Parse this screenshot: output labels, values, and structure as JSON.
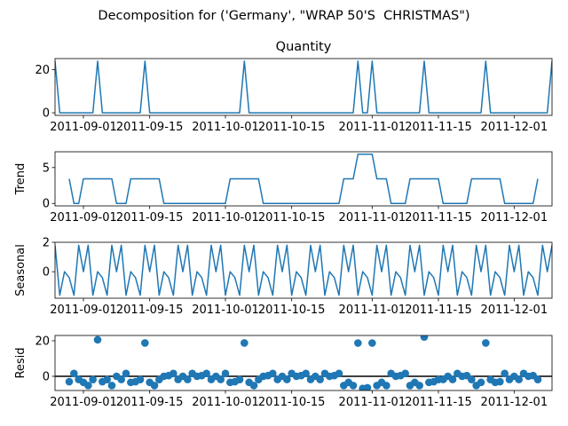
{
  "chart_data": {
    "title": "Decomposition for ('Germany', \"WRAP 50'S  CHRISTMAS\")",
    "x": [
      "2011-08-26",
      "2011-08-27",
      "2011-08-28",
      "2011-08-29",
      "2011-08-30",
      "2011-08-31",
      "2011-09-01",
      "2011-09-02",
      "2011-09-03",
      "2011-09-04",
      "2011-09-05",
      "2011-09-06",
      "2011-09-07",
      "2011-09-08",
      "2011-09-09",
      "2011-09-10",
      "2011-09-11",
      "2011-09-12",
      "2011-09-13",
      "2011-09-14",
      "2011-09-15",
      "2011-09-16",
      "2011-09-17",
      "2011-09-18",
      "2011-09-19",
      "2011-09-20",
      "2011-09-21",
      "2011-09-22",
      "2011-09-23",
      "2011-09-24",
      "2011-09-25",
      "2011-09-26",
      "2011-09-27",
      "2011-09-28",
      "2011-09-29",
      "2011-09-30",
      "2011-10-01",
      "2011-10-02",
      "2011-10-03",
      "2011-10-04",
      "2011-10-05",
      "2011-10-06",
      "2011-10-07",
      "2011-10-08",
      "2011-10-09",
      "2011-10-10",
      "2011-10-11",
      "2011-10-12",
      "2011-10-13",
      "2011-10-14",
      "2011-10-15",
      "2011-10-16",
      "2011-10-17",
      "2011-10-18",
      "2011-10-19",
      "2011-10-20",
      "2011-10-21",
      "2011-10-22",
      "2011-10-23",
      "2011-10-24",
      "2011-10-25",
      "2011-10-26",
      "2011-10-27",
      "2011-10-28",
      "2011-10-29",
      "2011-10-30",
      "2011-10-31",
      "2011-11-01",
      "2011-11-02",
      "2011-11-03",
      "2011-11-04",
      "2011-11-05",
      "2011-11-06",
      "2011-11-07",
      "2011-11-08",
      "2011-11-09",
      "2011-11-10",
      "2011-11-11",
      "2011-11-12",
      "2011-11-13",
      "2011-11-14",
      "2011-11-15",
      "2011-11-16",
      "2011-11-17",
      "2011-11-18",
      "2011-11-19",
      "2011-11-20",
      "2011-11-21",
      "2011-11-22",
      "2011-11-23",
      "2011-11-24",
      "2011-11-25",
      "2011-11-26",
      "2011-11-27",
      "2011-11-28",
      "2011-11-29",
      "2011-11-30",
      "2011-12-01",
      "2011-12-02",
      "2011-12-03",
      "2011-12-04",
      "2011-12-05",
      "2011-12-06",
      "2011-12-07",
      "2011-12-08",
      "2011-12-09"
    ],
    "xlim": [
      "2011-08-26",
      "2011-12-09"
    ],
    "xticks": [
      "2011-09-01",
      "2011-09-15",
      "2011-10-01",
      "2011-10-15",
      "2011-11-01",
      "2011-11-15",
      "2011-12-01"
    ],
    "panels": [
      {
        "type": "line",
        "title": "Quantity",
        "color": "#1f77b4",
        "ylim": [
          -1.2,
          25.2
        ],
        "yticks": [
          0,
          20
        ],
        "values": [
          24,
          0,
          0,
          0,
          0,
          0,
          0,
          0,
          0,
          24,
          0,
          0,
          0,
          0,
          0,
          0,
          0,
          0,
          0,
          24,
          0,
          0,
          0,
          0,
          0,
          0,
          0,
          0,
          0,
          0,
          0,
          0,
          0,
          0,
          0,
          0,
          0,
          0,
          0,
          0,
          24,
          0,
          0,
          0,
          0,
          0,
          0,
          0,
          0,
          0,
          0,
          0,
          0,
          0,
          0,
          0,
          0,
          0,
          0,
          0,
          0,
          0,
          0,
          0,
          24,
          0,
          0,
          24,
          0,
          0,
          0,
          0,
          0,
          0,
          0,
          0,
          0,
          0,
          24,
          0,
          0,
          0,
          0,
          0,
          0,
          0,
          0,
          0,
          0,
          0,
          0,
          24,
          0,
          0,
          0,
          0,
          0,
          0,
          0,
          0,
          0,
          0,
          0,
          0,
          0,
          24
        ]
      },
      {
        "type": "line",
        "ylabel": "Trend",
        "color": "#1f77b4",
        "ylim": [
          -0.34,
          7.2
        ],
        "yticks": [
          0,
          5
        ],
        "values": [
          null,
          null,
          null,
          3.43,
          0,
          0,
          3.43,
          3.43,
          3.43,
          3.43,
          3.43,
          3.43,
          3.43,
          0,
          0,
          0,
          3.43,
          3.43,
          3.43,
          3.43,
          3.43,
          3.43,
          3.43,
          0,
          0,
          0,
          0,
          0,
          0,
          0,
          0,
          0,
          0,
          0,
          0,
          0,
          0,
          3.43,
          3.43,
          3.43,
          3.43,
          3.43,
          3.43,
          3.43,
          0,
          0,
          0,
          0,
          0,
          0,
          0,
          0,
          0,
          0,
          0,
          0,
          0,
          0,
          0,
          0,
          0,
          3.43,
          3.43,
          3.43,
          6.86,
          6.86,
          6.86,
          6.86,
          3.43,
          3.43,
          3.43,
          0,
          0,
          0,
          0,
          3.43,
          3.43,
          3.43,
          3.43,
          3.43,
          3.43,
          3.43,
          0,
          0,
          0,
          0,
          0,
          0,
          3.43,
          3.43,
          3.43,
          3.43,
          3.43,
          3.43,
          3.43,
          0,
          0,
          0,
          0,
          0,
          0,
          0,
          3.43,
          null,
          null,
          null
        ]
      },
      {
        "type": "line",
        "ylabel": "Seasonal",
        "color": "#1f77b4",
        "ylim": [
          -1.8,
          2.0
        ],
        "yticks": [
          0,
          2
        ],
        "values": [
          1.8,
          -1.6,
          0,
          -0.4,
          -1.6,
          1.8,
          0,
          1.8,
          -1.6,
          0,
          -0.4,
          -1.6,
          1.8,
          0,
          1.8,
          -1.6,
          0,
          -0.4,
          -1.6,
          1.8,
          0,
          1.8,
          -1.6,
          0,
          -0.4,
          -1.6,
          1.8,
          0,
          1.8,
          -1.6,
          0,
          -0.4,
          -1.6,
          1.8,
          0,
          1.8,
          -1.6,
          0,
          -0.4,
          -1.6,
          1.8,
          0,
          1.8,
          -1.6,
          0,
          -0.4,
          -1.6,
          1.8,
          0,
          1.8,
          -1.6,
          0,
          -0.4,
          -1.6,
          1.8,
          0,
          1.8,
          -1.6,
          0,
          -0.4,
          -1.6,
          1.8,
          0,
          1.8,
          -1.6,
          0,
          -0.4,
          -1.6,
          1.8,
          0,
          1.8,
          -1.6,
          0,
          -0.4,
          -1.6,
          1.8,
          0,
          1.8,
          -1.6,
          0,
          -0.4,
          -1.6,
          1.8,
          0,
          1.8,
          -1.6,
          0,
          -0.4,
          -1.6,
          1.8,
          0,
          1.8,
          -1.6,
          0,
          -0.4,
          -1.6,
          1.8,
          0,
          1.8,
          -1.6,
          0,
          -0.4,
          -1.6,
          1.8,
          0,
          1.8
        ]
      },
      {
        "type": "scatter",
        "ylabel": "Resid",
        "color": "#1f77b4",
        "zero_line": true,
        "ylim": [
          -8,
          23
        ],
        "yticks": [
          0,
          20
        ],
        "values": [
          null,
          null,
          null,
          -3.03,
          1.6,
          -1.8,
          -3.43,
          -5.23,
          -1.83,
          20.57,
          -3.03,
          -1.83,
          -5.23,
          0,
          -1.8,
          1.6,
          -3.43,
          -3.03,
          -1.83,
          18.77,
          -3.43,
          -5.23,
          -1.83,
          0,
          0.4,
          1.6,
          -1.8,
          0,
          -1.8,
          1.6,
          0,
          0.4,
          1.6,
          -1.8,
          0,
          -1.8,
          1.6,
          -3.43,
          -3.03,
          -1.83,
          18.77,
          -3.43,
          -5.23,
          -1.83,
          0,
          0.4,
          1.6,
          -1.8,
          0,
          -1.8,
          1.6,
          0,
          0.4,
          1.6,
          -1.8,
          0,
          -1.8,
          1.6,
          0,
          0.4,
          1.6,
          -5.23,
          -3.43,
          -5.23,
          18.74,
          -6.86,
          -6.46,
          18.74,
          -5.23,
          -3.43,
          -5.23,
          1.6,
          0,
          0.4,
          1.6,
          -5.23,
          -3.43,
          -5.23,
          22.17,
          -3.43,
          -3.03,
          -1.83,
          -1.8,
          0,
          -1.8,
          1.6,
          0,
          0.4,
          -1.83,
          -5.23,
          -3.43,
          18.77,
          -1.83,
          -3.43,
          -3.03,
          1.6,
          -1.8,
          0,
          -1.8,
          1.6,
          0,
          0.4,
          -1.83,
          null,
          null,
          null
        ]
      }
    ]
  }
}
